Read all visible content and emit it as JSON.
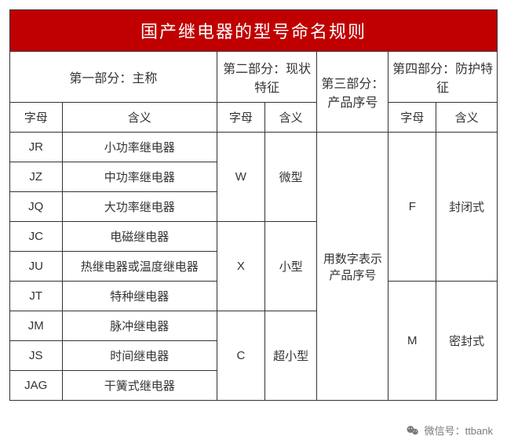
{
  "title": "国产继电器的型号命名规则",
  "header_bg": "#c00000",
  "header_color": "#ffffff",
  "border_color": "#333333",
  "sections": {
    "s1": {
      "title": "第一部分：主称",
      "col_letter": "字母",
      "col_meaning": "含义"
    },
    "s2": {
      "title": "第二部分：现状特征",
      "col_letter": "字母",
      "col_meaning": "含义"
    },
    "s3": {
      "title": "第三部分：产品序号"
    },
    "s4": {
      "title": "第四部分：防护特征",
      "col_letter": "字母",
      "col_meaning": "含义"
    }
  },
  "part1_rows": [
    {
      "letter": "JR",
      "meaning": "小功率继电器"
    },
    {
      "letter": "JZ",
      "meaning": "中功率继电器"
    },
    {
      "letter": "JQ",
      "meaning": "大功率继电器"
    },
    {
      "letter": "JC",
      "meaning": "电磁继电器"
    },
    {
      "letter": "JU",
      "meaning": "热继电器或温度继电器"
    },
    {
      "letter": "JT",
      "meaning": "特种继电器"
    },
    {
      "letter": "JM",
      "meaning": "脉冲继电器"
    },
    {
      "letter": "JS",
      "meaning": "时间继电器"
    },
    {
      "letter": "JAG",
      "meaning": "干簧式继电器"
    }
  ],
  "part2_groups": [
    {
      "letter": "W",
      "meaning": "微型",
      "span": 3
    },
    {
      "letter": "X",
      "meaning": "小型",
      "span": 3
    },
    {
      "letter": "C",
      "meaning": "超小型",
      "span": 3
    }
  ],
  "part3_text": "用数字表示产品序号",
  "part4_groups": [
    {
      "letter": "F",
      "meaning": "封闭式",
      "span": 5
    },
    {
      "letter": "M",
      "meaning": "密封式",
      "span": 4
    }
  ],
  "footer": {
    "label": "微信号",
    "value": "ttbank"
  },
  "colwidths": {
    "p1a": 60,
    "p1b": 178,
    "p2a": 55,
    "p2b": 60,
    "p3": 82,
    "p4a": 55,
    "p4b": 70
  },
  "title_fontsize": 22,
  "cell_fontsize": 15
}
